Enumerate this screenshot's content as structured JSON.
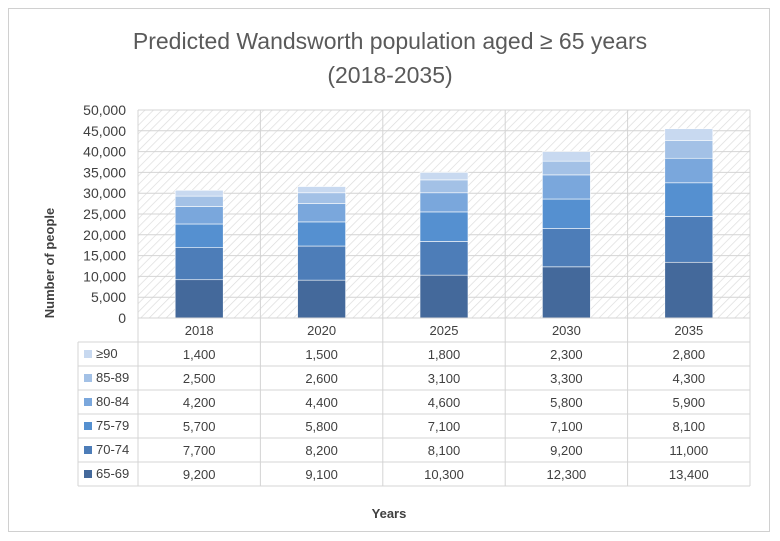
{
  "chart_data": {
    "type": "bar",
    "stacked": true,
    "title": "Predicted Wandsworth population aged ≥ 65 years",
    "subtitle": "(2018-2035)",
    "xlabel": "Years",
    "ylabel": "Number of people",
    "ylim": [
      0,
      50000
    ],
    "y_ticks": [
      "0",
      "5,000",
      "10,000",
      "15,000",
      "20,000",
      "25,000",
      "30,000",
      "35,000",
      "40,000",
      "45,000",
      "50,000"
    ],
    "categories": [
      "2018",
      "2020",
      "2025",
      "2030",
      "2035"
    ],
    "grid": true,
    "legend": "data-table",
    "series": [
      {
        "name": "65-69",
        "color": "#44699b",
        "values": [
          9200,
          9100,
          10300,
          12300,
          13400
        ],
        "labels": [
          "9,200",
          "9,100",
          "10,300",
          "12,300",
          "13,400"
        ]
      },
      {
        "name": "70-74",
        "color": "#4d7db8",
        "values": [
          7700,
          8200,
          8100,
          9200,
          11000
        ],
        "labels": [
          "7,700",
          "8,200",
          "8,100",
          "9,200",
          "11,000"
        ]
      },
      {
        "name": "75-79",
        "color": "#5590d0",
        "values": [
          5700,
          5800,
          7100,
          7100,
          8100
        ],
        "labels": [
          "5,700",
          "5,800",
          "7,100",
          "7,100",
          "8,100"
        ]
      },
      {
        "name": "80-84",
        "color": "#7aa7dc",
        "values": [
          4200,
          4400,
          4600,
          5800,
          5900
        ],
        "labels": [
          "4,200",
          "4,400",
          "4,600",
          "5,800",
          "5,900"
        ]
      },
      {
        "name": "85-89",
        "color": "#a3c1e6",
        "values": [
          2500,
          2600,
          3100,
          3300,
          4300
        ],
        "labels": [
          "2,500",
          "2,600",
          "3,100",
          "3,300",
          "4,300"
        ]
      },
      {
        "name": "≥90",
        "color": "#c8d9f0",
        "values": [
          1400,
          1500,
          1800,
          2300,
          2800
        ],
        "labels": [
          "1,400",
          "1,500",
          "1,800",
          "2,300",
          "2,800"
        ]
      }
    ]
  }
}
